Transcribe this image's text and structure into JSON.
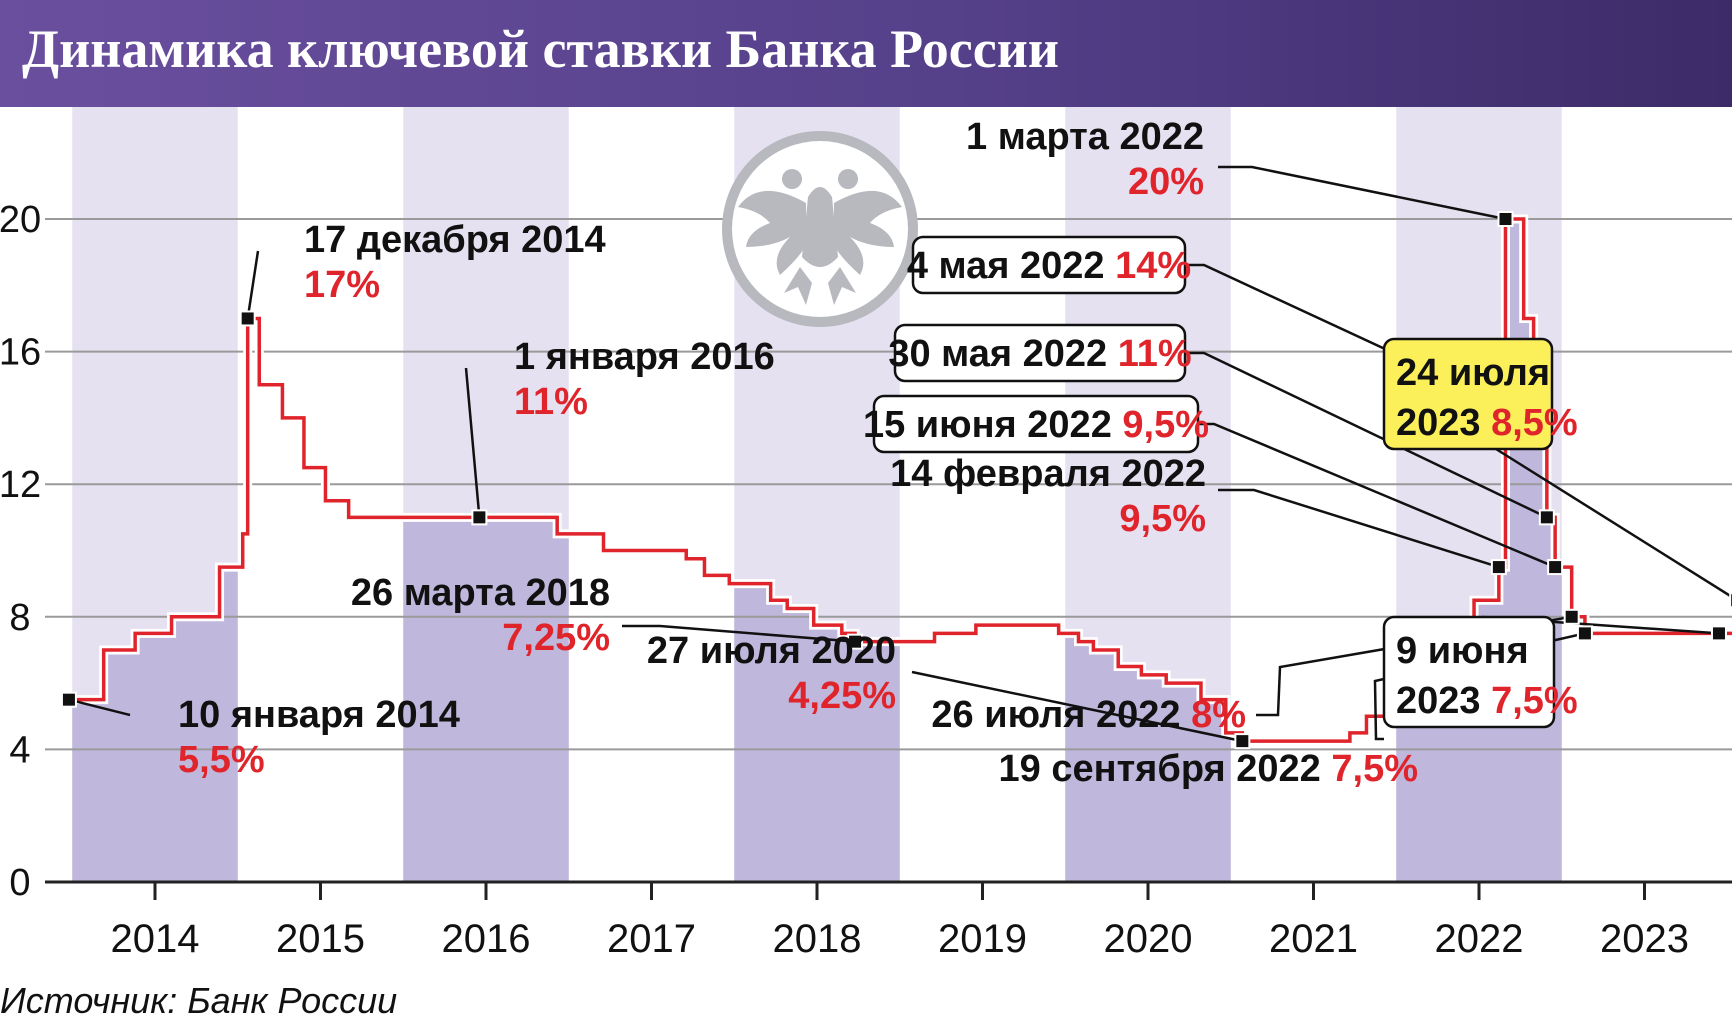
{
  "header": {
    "title": "Динамика ключевой ставки Банка России"
  },
  "source": "Источник: Банк России",
  "colors": {
    "header": "#55408a",
    "line": "#e0242b",
    "band_light": "#e5e1f0",
    "band_dark": "#bfb8dc",
    "highlight": "#fbef5a"
  },
  "logo": {
    "icon": "double-headed-eagle-icon"
  },
  "chart_data": {
    "type": "line",
    "step": true,
    "title": "Динамика ключевой ставки Банка России",
    "xlabel": "",
    "ylabel": "",
    "ylim": [
      0,
      20
    ],
    "yticks": [
      "0",
      "4",
      "8",
      "12",
      "16",
      "20"
    ],
    "years": [
      "2014",
      "2015",
      "2016",
      "2017",
      "2018",
      "2019",
      "2020",
      "2021",
      "2022",
      "2023"
    ],
    "x_range": [
      2013.5,
      2023.5
    ],
    "grid": true,
    "series": [
      {
        "values": [
          [
            2013.48,
            5.5
          ],
          [
            2013.69,
            7.0
          ],
          [
            2013.88,
            7.5
          ],
          [
            2014.1,
            8.0
          ],
          [
            2014.39,
            9.5
          ],
          [
            2014.53,
            10.5
          ],
          [
            2014.56,
            17.0
          ],
          [
            2014.63,
            15.0
          ],
          [
            2014.77,
            14.0
          ],
          [
            2014.9,
            12.5
          ],
          [
            2015.03,
            11.5
          ],
          [
            2015.17,
            11.0
          ],
          [
            2015.96,
            11.0
          ],
          [
            2016.43,
            10.5
          ],
          [
            2016.71,
            10.0
          ],
          [
            2017.21,
            9.75
          ],
          [
            2017.32,
            9.25
          ],
          [
            2017.47,
            9.0
          ],
          [
            2017.72,
            8.5
          ],
          [
            2017.82,
            8.25
          ],
          [
            2017.98,
            7.75
          ],
          [
            2018.15,
            7.5
          ],
          [
            2018.23,
            7.25
          ],
          [
            2018.71,
            7.5
          ],
          [
            2018.96,
            7.75
          ],
          [
            2019.46,
            7.5
          ],
          [
            2019.58,
            7.25
          ],
          [
            2019.67,
            7.0
          ],
          [
            2019.82,
            6.5
          ],
          [
            2019.96,
            6.25
          ],
          [
            2020.11,
            6.0
          ],
          [
            2020.32,
            5.5
          ],
          [
            2020.47,
            4.5
          ],
          [
            2020.57,
            4.25
          ],
          [
            2021.22,
            4.5
          ],
          [
            2021.32,
            5.0
          ],
          [
            2021.46,
            5.5
          ],
          [
            2021.57,
            6.5
          ],
          [
            2021.71,
            6.75
          ],
          [
            2021.86,
            7.5
          ],
          [
            2021.97,
            8.5
          ],
          [
            2022.12,
            9.5
          ],
          [
            2022.16,
            20.0
          ],
          [
            2022.27,
            17.0
          ],
          [
            2022.33,
            14.0
          ],
          [
            2022.41,
            11.0
          ],
          [
            2022.46,
            9.5
          ],
          [
            2022.56,
            8.0
          ],
          [
            2022.64,
            7.5
          ],
          [
            2023.5,
            7.5
          ],
          [
            2023.56,
            8.5
          ],
          [
            2023.6,
            8.5
          ]
        ]
      }
    ],
    "shaded_years": [
      "2014",
      "2016",
      "2018",
      "2020",
      "2022"
    ],
    "annotations": [
      {
        "date": "10 января 2014",
        "value": "5,5%",
        "x": 2013.48,
        "y": 5.5,
        "box": false
      },
      {
        "date": "17 декабря 2014",
        "value": "17%",
        "x": 2014.56,
        "y": 17.0,
        "box": false
      },
      {
        "date": "1 января 2016",
        "value": "11%",
        "x": 2015.96,
        "y": 11.0,
        "box": false
      },
      {
        "date": "26 марта 2018",
        "value": "7,25%",
        "x": 2018.23,
        "y": 7.25,
        "box": false
      },
      {
        "date": "27 июля 2020",
        "value": "4,25%",
        "x": 2020.57,
        "y": 4.25,
        "box": false
      },
      {
        "date": "14 февраля 2022",
        "value": "9,5%",
        "x": 2022.12,
        "y": 9.5,
        "box": false
      },
      {
        "date": "1 марта 2022",
        "value": "20%",
        "x": 2022.16,
        "y": 20.0,
        "box": false
      },
      {
        "date": "4 мая 2022",
        "value": "14%",
        "x": 2022.33,
        "y": 14.0,
        "box": true
      },
      {
        "date": "30 мая 2022",
        "value": "11%",
        "x": 2022.41,
        "y": 11.0,
        "box": true
      },
      {
        "date": "15 июня 2022",
        "value": "9,5%",
        "x": 2022.46,
        "y": 9.5,
        "box": true
      },
      {
        "date": "26 июля 2022",
        "value": "8%",
        "x": 2022.56,
        "y": 8.0,
        "box": false
      },
      {
        "date": "19 сентября 2022",
        "value": "7,5%",
        "x": 2022.64,
        "y": 7.5,
        "box": false
      },
      {
        "date": "9 июня 2023",
        "value": "7,5%",
        "x": 2023.45,
        "y": 7.5,
        "box": true
      },
      {
        "date": "24 июля 2023",
        "value": "8,5%",
        "x": 2023.56,
        "y": 8.5,
        "box": true,
        "highlight": true
      }
    ]
  }
}
